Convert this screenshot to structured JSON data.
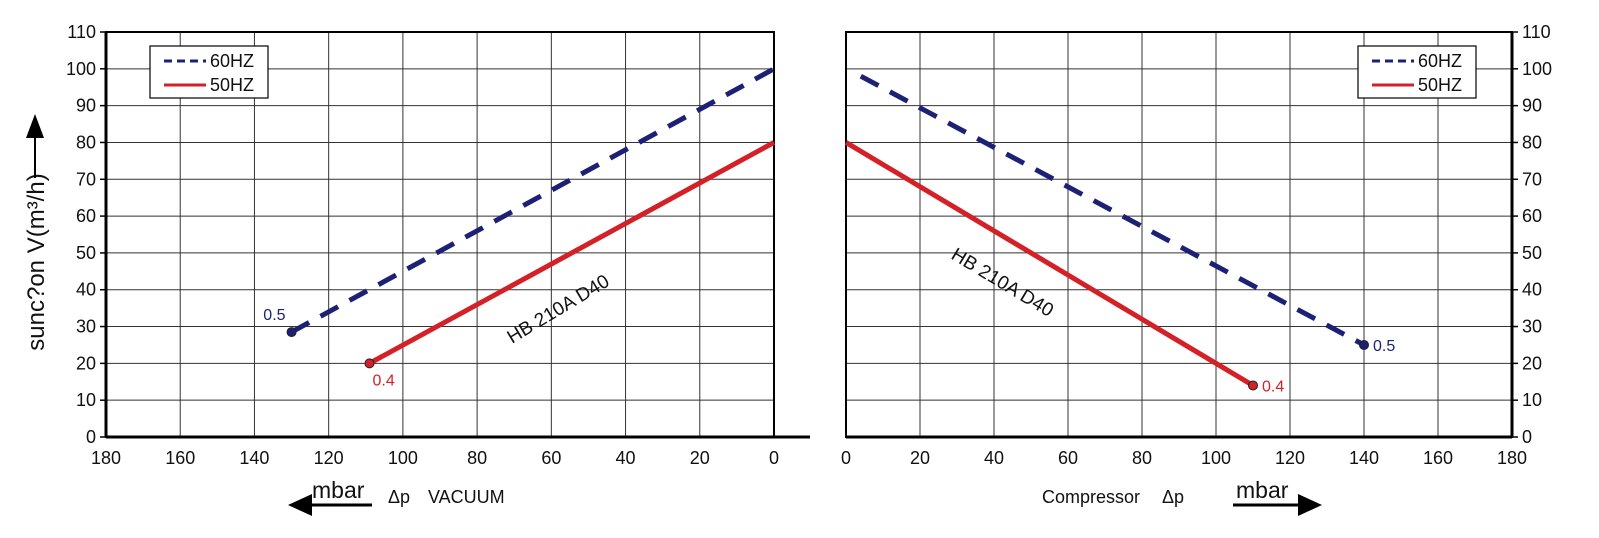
{
  "y_axis_title": "sunc?on V(m³/h)",
  "colors": {
    "series_60hz": "#1c2176",
    "series_50hz": "#d42027",
    "grid": "#333333",
    "axis": "#000000"
  },
  "chart_data": [
    {
      "type": "line",
      "x_axis_reversed": true,
      "xlim": [
        0,
        180
      ],
      "ylim": [
        0,
        110
      ],
      "x_ticks": [
        "180",
        "160",
        "140",
        "120",
        "100",
        "80",
        "60",
        "40",
        "20",
        "0"
      ],
      "y_ticks": [
        "110",
        "100",
        "90",
        "80",
        "70",
        "60",
        "50",
        "40",
        "30",
        "20",
        "10",
        "0"
      ],
      "x_unit": "mbar",
      "x_caption": "VACUUM",
      "delta_symbol": "Δp",
      "model_label": "HB 210A D40",
      "grid": true,
      "legend_placement": "top-left",
      "legend": [
        "60HZ",
        "50HZ"
      ],
      "series": [
        {
          "name": "60HZ",
          "style": "dashed",
          "points": [
            [
              130,
              28.5
            ],
            [
              0,
              100
            ]
          ],
          "end_label": "0.5"
        },
        {
          "name": "50HZ",
          "style": "solid",
          "points": [
            [
              109,
              20
            ],
            [
              0,
              80
            ]
          ],
          "end_label": "0.4"
        }
      ]
    },
    {
      "type": "line",
      "x_axis_reversed": false,
      "xlim": [
        0,
        180
      ],
      "ylim": [
        0,
        110
      ],
      "x_ticks": [
        "0",
        "20",
        "40",
        "60",
        "80",
        "100",
        "120",
        "140",
        "160",
        "180"
      ],
      "y_ticks": [
        "110",
        "100",
        "90",
        "80",
        "70",
        "60",
        "50",
        "40",
        "30",
        "20",
        "10",
        "0"
      ],
      "x_unit": "mbar",
      "x_caption": "Compressor",
      "delta_symbol": "Δp",
      "model_label": "HB 210A D40",
      "grid": true,
      "legend_placement": "top-right",
      "legend": [
        "60HZ",
        "50HZ"
      ],
      "series": [
        {
          "name": "60HZ",
          "style": "dashed",
          "points": [
            [
              4,
              98
            ],
            [
              140,
              25
            ]
          ],
          "end_label": "0.5"
        },
        {
          "name": "50HZ",
          "style": "solid",
          "points": [
            [
              0,
              80
            ],
            [
              110,
              14
            ]
          ],
          "end_label": "0.4"
        }
      ]
    }
  ]
}
